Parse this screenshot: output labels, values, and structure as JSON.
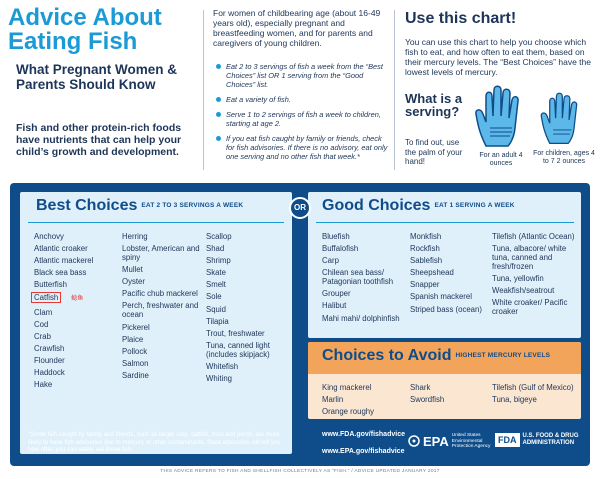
{
  "header": {
    "title": "Advice About Eating Fish",
    "subtitle": "What Pregnant Women & Parents Should Know",
    "nutrients": "Fish and other protein-rich foods have nutrients that can help your child’s growth and development."
  },
  "middle": {
    "intro": "For women of childbearing age (about 16-49 years old), especially pregnant and breastfeeding women, and for parents and caregivers of young children.",
    "tips": [
      "Eat 2 to 3 servings of fish a week from the “Best Choices” list OR 1 serving from the “Good Choices” list.",
      "Eat a variety of fish.",
      "Serve 1 to 2 servings of fish a week to children, starting at age 2.",
      "If you eat fish caught by family or friends, check for fish advisories. If there is no advisory, eat only one serving and no other fish that week.*"
    ]
  },
  "right": {
    "use_title": "Use this chart!",
    "use_text": "You can use this chart to help you choose which fish to eat, and how often to eat them, based on their mercury levels. The “Best Choices” have the lowest levels of mercury.",
    "serving_q": "What is a serving?",
    "palm_text": "To find out, use the palm of your hand!",
    "adult_label": "For an adult 4 ounces",
    "child_label": "For children, ages 4 to 7 2 ounces"
  },
  "best": {
    "title": "Best Choices",
    "sub": "EAT 2 TO 3 SERVINGS A WEEK",
    "col1": [
      "Anchovy",
      "Atlantic croaker",
      "Atlantic mackerel",
      "Black sea bass",
      "Butterfish",
      "Catfish",
      "Clam",
      "Cod",
      "Crab",
      "Crawfish",
      "Flounder",
      "Haddock",
      "Hake"
    ],
    "col2": [
      "Herring",
      "Lobster, American and spiny",
      "Mullet",
      "Oyster",
      "Pacific chub mackerel",
      "Perch, freshwater and ocean",
      "Pickerel",
      "Plaice",
      "Pollock",
      "Salmon",
      "Sardine"
    ],
    "col3": [
      "Scallop",
      "Shad",
      "Shrimp",
      "Skate",
      "Smelt",
      "Sole",
      "Squid",
      "Tilapia",
      "Trout, freshwater",
      "Tuna, canned light (includes skipjack)",
      "Whitefish",
      "Whiting"
    ],
    "catfish_note": "鲶鱼"
  },
  "or_label": "OR",
  "good": {
    "title": "Good Choices",
    "sub": "EAT 1 SERVING A WEEK",
    "col1": [
      "Bluefish",
      "Buffalofish",
      "Carp",
      "Chilean sea bass/ Patagonian toothfish",
      "Grouper",
      "Halibut",
      "Mahi mahi/ dolphinfish"
    ],
    "col2": [
      "Monkfish",
      "Rockfish",
      "Sablefish",
      "Sheepshead",
      "Snapper",
      "Spanish mackerel",
      "Striped bass (ocean)"
    ],
    "col3": [
      "Tilefish (Atlantic Ocean)",
      "Tuna, albacore/ white tuna, canned and fresh/frozen",
      "Tuna, yellowfin",
      "Weakfish/seatrout",
      "White croaker/ Pacific croaker"
    ]
  },
  "avoid": {
    "title": "Choices to Avoid",
    "sub": "HIGHEST MERCURY LEVELS",
    "col1": [
      "King mackerel",
      "Marlin",
      "Orange roughy"
    ],
    "col2": [
      "Shark",
      "Swordfish"
    ],
    "col3": [
      "Tilefish (Gulf of Mexico)",
      "Tuna, bigeye"
    ]
  },
  "footer": {
    "footnote": "*Some fish caught by family and friends, such as larger carp, catfish, trout and perch, are more likely to have fish advisories due to mercury or other contaminants. State advisories will tell you how often you can safely eat those fish.",
    "fda_link": "www.FDA.gov/fishadvice",
    "epa_link": "www.EPA.gov/fishadvice",
    "epa_logo": "EPA",
    "epa_agency": "United States Environmental Protection Agency",
    "fda_logo": "FDA",
    "fda_agency": "U.S. FOOD & DRUG ADMINISTRATION",
    "bottom_note": "THIS ADVICE REFERS TO FISH AND SHELLFISH COLLECTIVELY AS “FISH.” / ADVICE UPDATED JANUARY 2017"
  },
  "colors": {
    "accent": "#1c9ad6",
    "navy": "#0f4c8a",
    "light": "#dff0fb",
    "orange": "#f3a45b"
  }
}
